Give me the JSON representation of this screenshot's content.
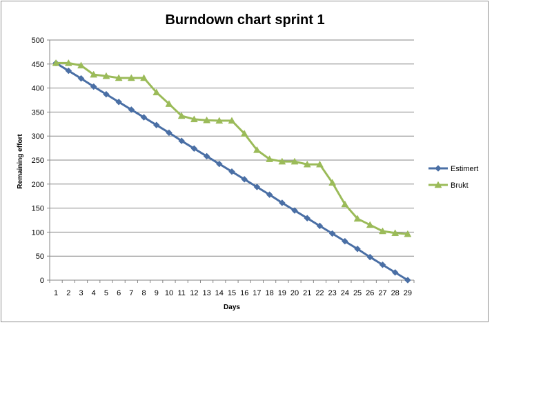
{
  "chart_data": {
    "type": "line",
    "title": "Burndown chart sprint 1",
    "xlabel": "Days",
    "ylabel": "Remaining effort",
    "ylim": [
      0,
      500
    ],
    "yticks": [
      0,
      50,
      100,
      150,
      200,
      250,
      300,
      350,
      400,
      450,
      500
    ],
    "grid": "horizontal",
    "legend_position": "right",
    "x": [
      1,
      2,
      3,
      4,
      5,
      6,
      7,
      8,
      9,
      10,
      11,
      12,
      13,
      14,
      15,
      16,
      17,
      18,
      19,
      20,
      21,
      22,
      23,
      24,
      25,
      26,
      27,
      28,
      29
    ],
    "series": [
      {
        "name": "Estimert",
        "color": "#4a6fa5",
        "marker": "diamond",
        "values": [
          452,
          436,
          420,
          403,
          387,
          371,
          355,
          339,
          323,
          307,
          290,
          274,
          258,
          242,
          226,
          210,
          194,
          178,
          161,
          145,
          129,
          113,
          97,
          81,
          65,
          48,
          32,
          16,
          0
        ]
      },
      {
        "name": "Brukt",
        "color": "#9bbb59",
        "marker": "triangle",
        "values": [
          452,
          452,
          447,
          428,
          425,
          421,
          421,
          421,
          391,
          367,
          342,
          335,
          333,
          332,
          332,
          305,
          271,
          252,
          247,
          247,
          241,
          241,
          203,
          158,
          128,
          115,
          102,
          98,
          96
        ]
      }
    ]
  }
}
